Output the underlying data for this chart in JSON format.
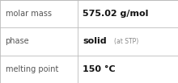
{
  "rows": [
    {
      "label": "molar mass",
      "value_main": "575.02 g/mol",
      "value_sub": ""
    },
    {
      "label": "phase",
      "value_main": "solid",
      "value_sub": "(at STP)"
    },
    {
      "label": "melting point",
      "value_main": "150 °C",
      "value_sub": ""
    }
  ],
  "bg_color": "#ffffff",
  "border_color": "#bbbbbb",
  "label_color": "#555555",
  "value_color": "#111111",
  "sub_color": "#888888",
  "label_fontsize": 7.0,
  "value_fontsize": 8.0,
  "sub_fontsize": 5.5,
  "col_split": 0.435,
  "figsize": [
    2.2,
    1.03
  ],
  "dpi": 100
}
